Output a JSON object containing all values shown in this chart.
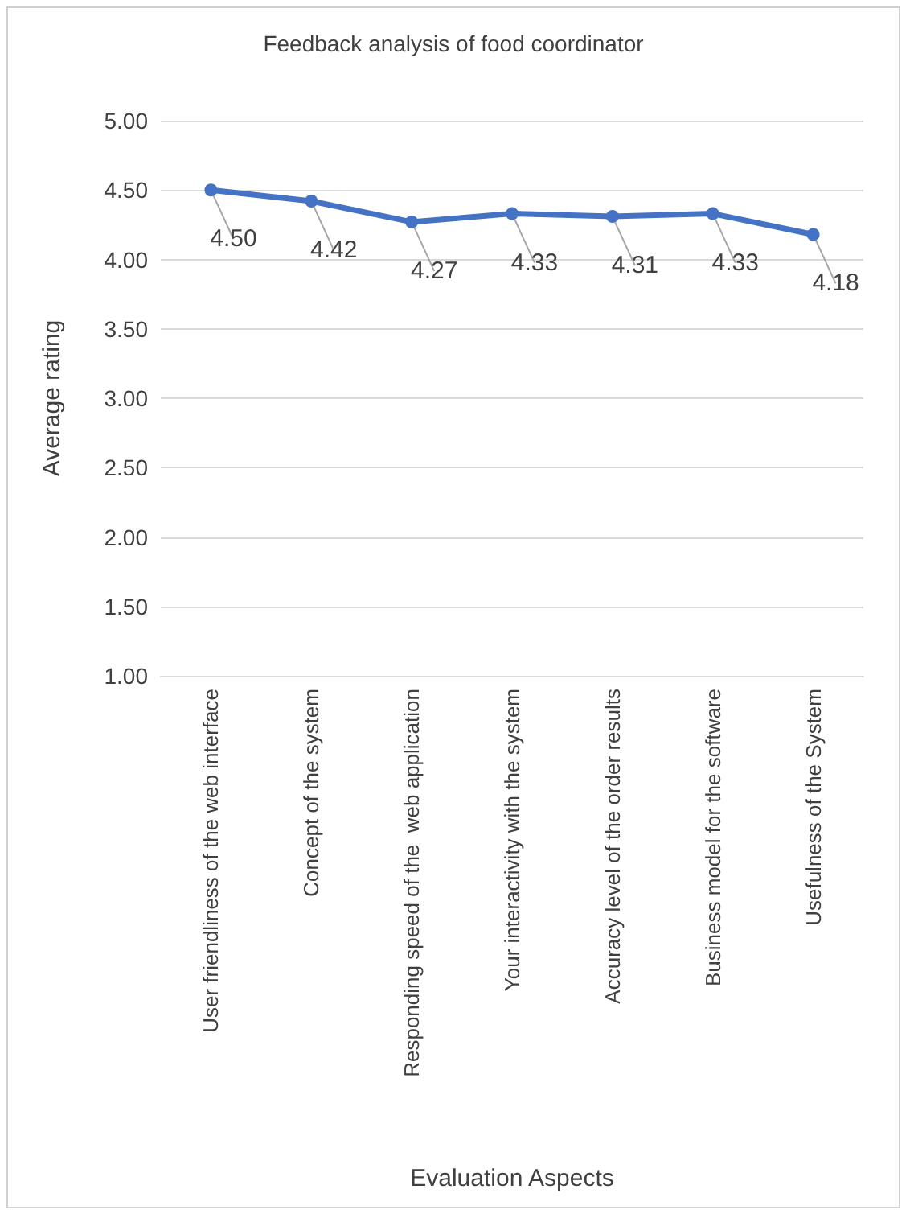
{
  "chart_data": {
    "type": "line",
    "title": "Feedback analysis of food coordinator",
    "xlabel": "Evaluation Aspects",
    "ylabel": "Average rating",
    "categories": [
      "User friendliness of the web interface",
      "Concept of the system",
      "Responding speed of the  web application",
      "Your interactivity with the system",
      "Accuracy level of the order results",
      "Business model for the software",
      "Usefulness of the System"
    ],
    "values": [
      4.5,
      4.42,
      4.27,
      4.33,
      4.31,
      4.33,
      4.18
    ],
    "value_labels": [
      "4.50",
      "4.42",
      "4.27",
      "4.33",
      "4.31",
      "4.33",
      "4.18"
    ],
    "color": "#4472c4",
    "ylim": [
      1,
      5
    ],
    "yticks": [
      {
        "value": 1,
        "label": "1.00"
      },
      {
        "value": 1.5,
        "label": "1.50"
      },
      {
        "value": 2,
        "label": "2.00"
      },
      {
        "value": 2.5,
        "label": "2.50"
      },
      {
        "value": 3,
        "label": "3.00"
      },
      {
        "value": 3.5,
        "label": "3.50"
      },
      {
        "value": 4,
        "label": "4.00"
      },
      {
        "value": 4.5,
        "label": "4.50"
      },
      {
        "value": 5,
        "label": "5.00"
      }
    ],
    "grid": "y",
    "marker": "circle",
    "line_style": "solid"
  }
}
